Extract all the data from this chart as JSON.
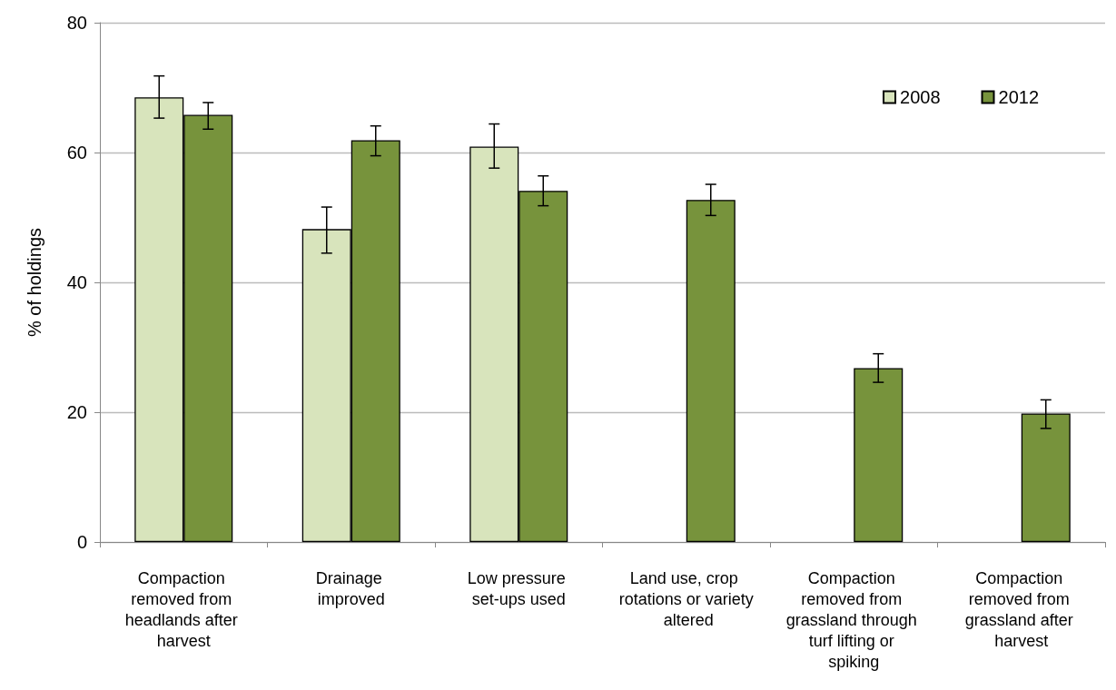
{
  "chart_data": {
    "type": "bar",
    "categories": [
      "Compaction removed from headlands after harvest",
      "Drainage improved",
      "Low pressure set-ups used",
      "Land use, crop rotations or variety altered",
      "Compaction removed from grassland through turf lifting or spiking",
      "Compaction removed from grassland after harvest"
    ],
    "series": [
      {
        "name": "2008",
        "color": "#d8e4bc",
        "values": [
          68.5,
          48.2,
          60.9,
          null,
          null,
          null
        ],
        "errors": [
          [
            65.3,
            71.8
          ],
          [
            44.5,
            51.6
          ],
          [
            57.6,
            64.4
          ],
          null,
          null,
          null
        ]
      },
      {
        "name": "2012",
        "color": "#77933c",
        "values": [
          65.8,
          61.9,
          54.1,
          52.7,
          26.8,
          19.8
        ],
        "errors": [
          [
            63.6,
            67.7
          ],
          [
            59.5,
            64.1
          ],
          [
            51.8,
            56.4
          ],
          [
            50.3,
            55.1
          ],
          [
            24.6,
            29.0
          ],
          [
            17.5,
            21.9
          ]
        ]
      }
    ],
    "ylabel": "% of holdings",
    "ylim": [
      0,
      80
    ],
    "yticks": [
      0,
      20,
      40,
      60,
      80
    ],
    "grid": "y",
    "legend": "top right"
  }
}
